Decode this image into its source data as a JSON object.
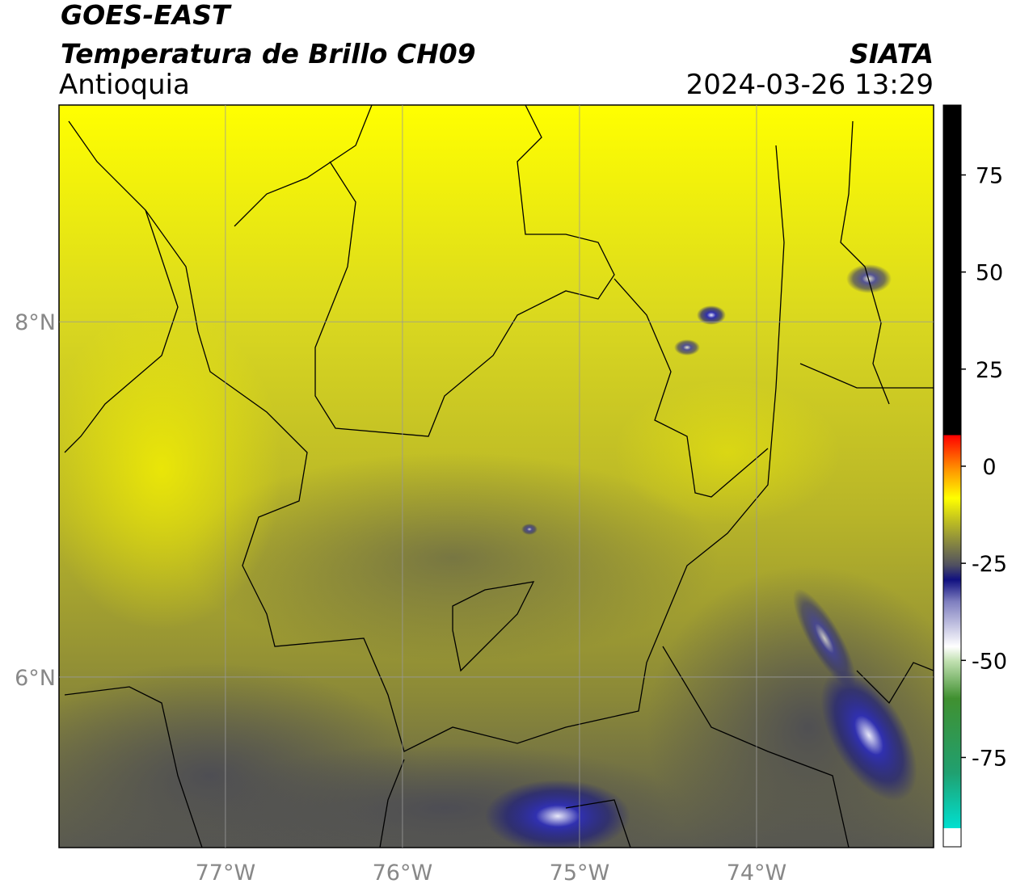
{
  "header": {
    "title": "GOES-EAST",
    "subtitle": "Temperatura de Brillo CH09",
    "region": "Antioquia",
    "source": "SIATA",
    "datetime": "2024-03-26 13:29"
  },
  "map": {
    "xlim": [
      -77.94,
      -73.0
    ],
    "ylim": [
      5.04,
      9.22
    ],
    "xticks": [
      {
        "value": -77,
        "label": "77°W"
      },
      {
        "value": -76,
        "label": "76°W"
      },
      {
        "value": -75,
        "label": "75°W"
      },
      {
        "value": -74,
        "label": "74°W"
      }
    ],
    "yticks": [
      {
        "value": 6,
        "label": "6°N"
      },
      {
        "value": 8,
        "label": "8°N"
      }
    ],
    "grid": true
  },
  "colorbar": {
    "lim": [
      -98,
      93
    ],
    "ticks": [
      -75,
      -50,
      -25,
      0,
      25,
      50,
      75
    ]
  }
}
